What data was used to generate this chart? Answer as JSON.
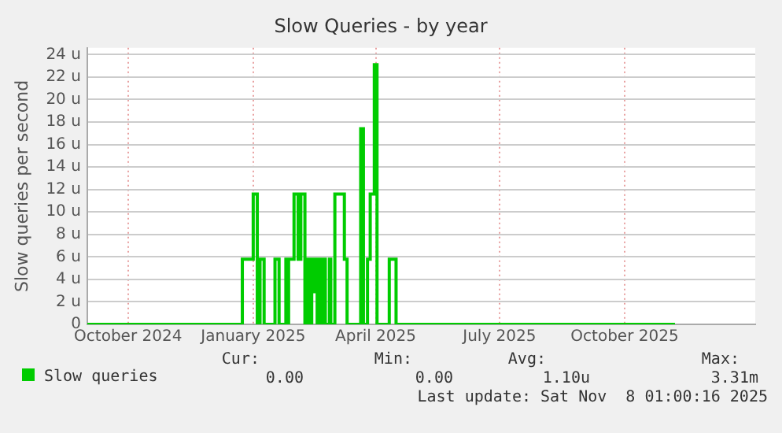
{
  "chart_data": {
    "type": "step",
    "title": "Slow Queries - by year",
    "ylabel": "Slow queries per second",
    "x": [
      "2024-09-01",
      "2024-12-24",
      "2025-01-01",
      "2025-01-04",
      "2025-01-06",
      "2025-01-09",
      "2025-01-17",
      "2025-01-20",
      "2025-01-25",
      "2025-01-26",
      "2025-01-27",
      "2025-01-31",
      "2025-02-03",
      "2025-02-05",
      "2025-02-08",
      "2025-02-10",
      "2025-02-11",
      "2025-02-13",
      "2025-02-14",
      "2025-02-16",
      "2025-02-17",
      "2025-02-19",
      "2025-02-20",
      "2025-02-22",
      "2025-02-23",
      "2025-02-26",
      "2025-02-27",
      "2025-03-02",
      "2025-03-09",
      "2025-03-11",
      "2025-03-21",
      "2025-03-23",
      "2025-03-26",
      "2025-03-28",
      "2025-03-31",
      "2025-04-02",
      "2025-04-11",
      "2025-04-16",
      "2025-11-07"
    ],
    "series": [
      {
        "name": "Slow queries",
        "color": "#00cc00",
        "values": [
          0,
          5.8,
          11.6,
          0,
          5.8,
          0,
          5.8,
          0,
          5.8,
          0,
          5.8,
          11.6,
          5.8,
          11.6,
          0,
          5.8,
          0,
          5.8,
          2.9,
          5.8,
          0,
          5.8,
          0,
          5.8,
          0,
          5.8,
          0,
          11.6,
          5.8,
          0,
          17.4,
          0,
          5.8,
          11.6,
          23.1,
          0,
          5.8,
          0,
          0
        ]
      }
    ],
    "xlim": [
      "2024-09-01",
      "2026-01-05"
    ],
    "xticks": [
      {
        "value": "2024-10-01",
        "label": "October 2024"
      },
      {
        "value": "2025-01-01",
        "label": "January 2025"
      },
      {
        "value": "2025-04-01",
        "label": "April 2025"
      },
      {
        "value": "2025-07-01",
        "label": "July 2025"
      },
      {
        "value": "2025-10-01",
        "label": "October 2025"
      }
    ],
    "ylim": [
      0,
      24.6
    ],
    "yticks": [
      0,
      {
        "value": 2,
        "label": "2 u"
      },
      {
        "value": 4,
        "label": "4 u"
      },
      {
        "value": 6,
        "label": "6 u"
      },
      {
        "value": 8,
        "label": "8 u"
      },
      {
        "value": 10,
        "label": "10 u"
      },
      {
        "value": 12,
        "label": "12 u"
      },
      {
        "value": 14,
        "label": "14 u"
      },
      {
        "value": 16,
        "label": "16 u"
      },
      {
        "value": 18,
        "label": "18 u"
      },
      {
        "value": 20,
        "label": "20 u"
      },
      {
        "value": 22,
        "label": "22 u"
      },
      {
        "value": 24,
        "label": "24 u"
      }
    ],
    "grid": true,
    "legend": "bottom left",
    "annotations": [
      "Cur:",
      "0.00",
      "Min:",
      "0.00",
      "Avg:",
      "1.10u",
      "Max:",
      "3.31m",
      "Last update: Sat Nov  8 01:00:16 2025"
    ]
  }
}
